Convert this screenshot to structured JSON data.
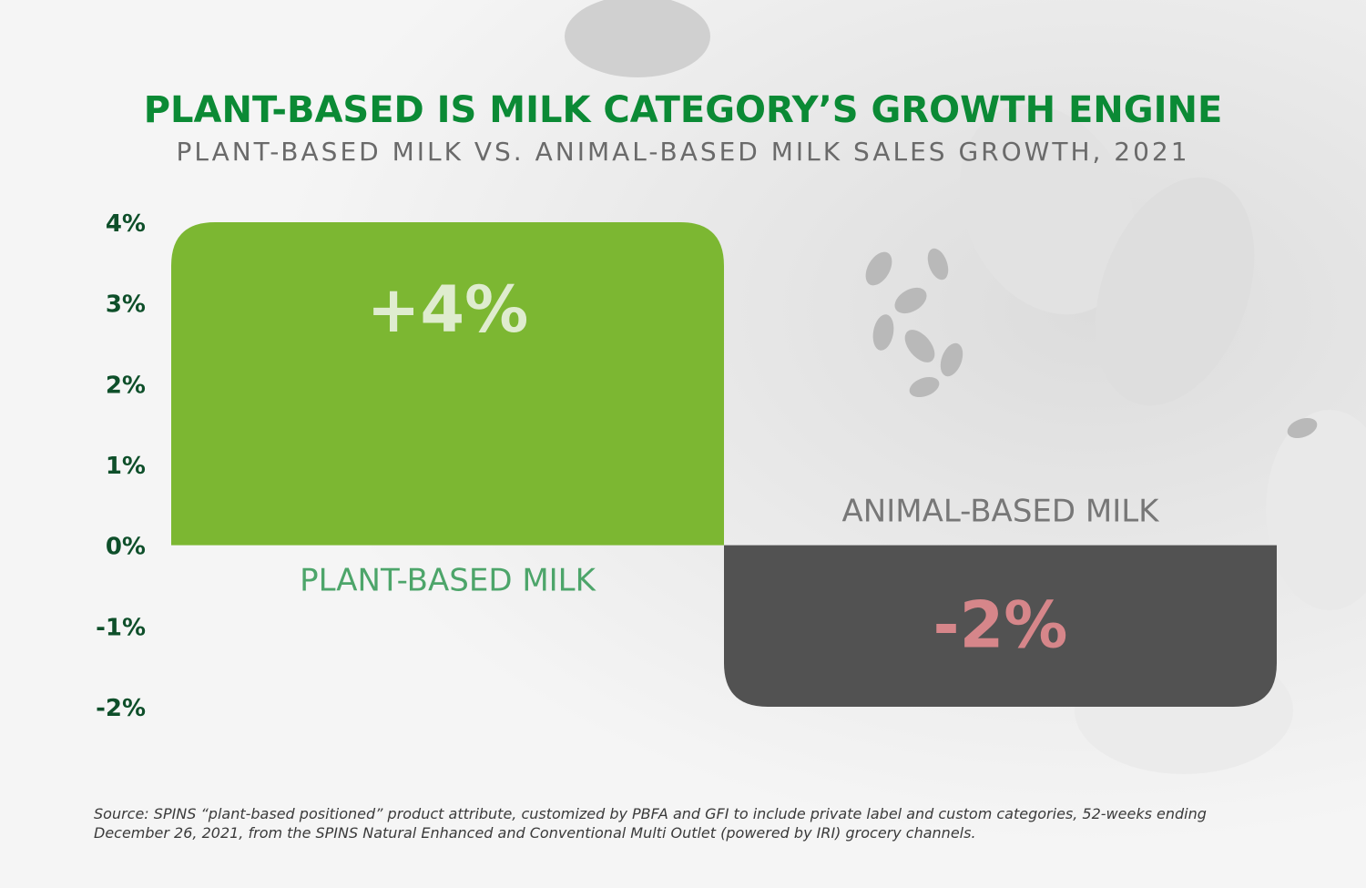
{
  "title": "PLANT-BASED IS MILK CATEGORY’S GROWTH ENGINE",
  "subtitle": "PLANT-BASED MILK VS. ANIMAL-BASED MILK SALES GROWTH, 2021",
  "source": "Source: SPINS “plant-based positioned” product attribute, customized by PBFA and GFI to include private label and custom categories, 52-weeks ending December 26, 2021, from the SPINS Natural Enhanced and Conventional Multi Outlet (powered by IRI) grocery channels.",
  "colors": {
    "title": "#0b8a35",
    "plant_bar": "#7cb732",
    "animal_bar": "#525252",
    "plant_value_text": "#dfeccf",
    "animal_value_text": "#d6868a",
    "plant_label": "#4da56a",
    "animal_label": "#777777",
    "tick_label": "#0e4f2a"
  },
  "chart_data": {
    "type": "bar",
    "categories": [
      "PLANT-BASED MILK",
      "ANIMAL-BASED MILK"
    ],
    "values": [
      4,
      -2
    ],
    "data_labels": [
      "+4%",
      "-2%"
    ],
    "yticks": [
      "4%",
      "3%",
      "2%",
      "1%",
      "0%",
      "-1%",
      "-2%"
    ],
    "ylim": [
      -2,
      4
    ],
    "title": "PLANT-BASED IS MILK CATEGORY’S GROWTH ENGINE",
    "xlabel": "",
    "ylabel": "",
    "grid": false
  }
}
